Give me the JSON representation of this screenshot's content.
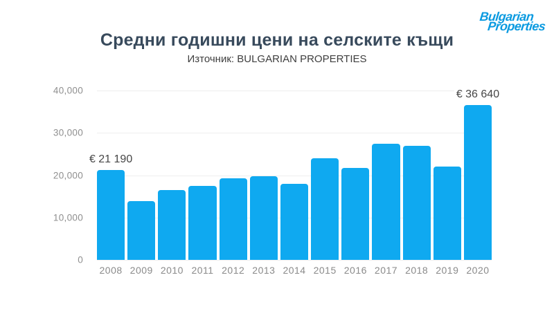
{
  "header": {
    "title": "Средни годишни цени на селските къщи",
    "subtitle": "Източник: BULGARIAN PROPERTIES"
  },
  "logo": {
    "line1": "Bulgarian",
    "line2": "Properties",
    "color": "#0a9ae0"
  },
  "chart_data": {
    "type": "bar",
    "title": "Средни годишни цени на селските къщи",
    "subtitle": "Източник: BULGARIAN PROPERTIES",
    "categories": [
      "2008",
      "2009",
      "2010",
      "2011",
      "2012",
      "2013",
      "2014",
      "2015",
      "2016",
      "2017",
      "2018",
      "2019",
      "2020"
    ],
    "values": [
      21190,
      13900,
      16500,
      17400,
      19200,
      19800,
      18000,
      24000,
      21700,
      27400,
      26900,
      22000,
      36640
    ],
    "point_labels": {
      "2008": "€ 21 190",
      "2020": "€ 36 640"
    },
    "y_ticks": [
      {
        "value": 40000,
        "label": "40,000"
      },
      {
        "value": 30000,
        "label": "30,000"
      },
      {
        "value": 20000,
        "label": "20,000"
      },
      {
        "value": 10000,
        "label": "10,000"
      },
      {
        "value": 0,
        "label": "0"
      }
    ],
    "ylim": [
      0,
      40000
    ],
    "xlabel": "",
    "ylabel": "",
    "grid": true,
    "legend": "none",
    "bar_color": "#0fa9f0",
    "grid_color": "#eeeeee"
  }
}
